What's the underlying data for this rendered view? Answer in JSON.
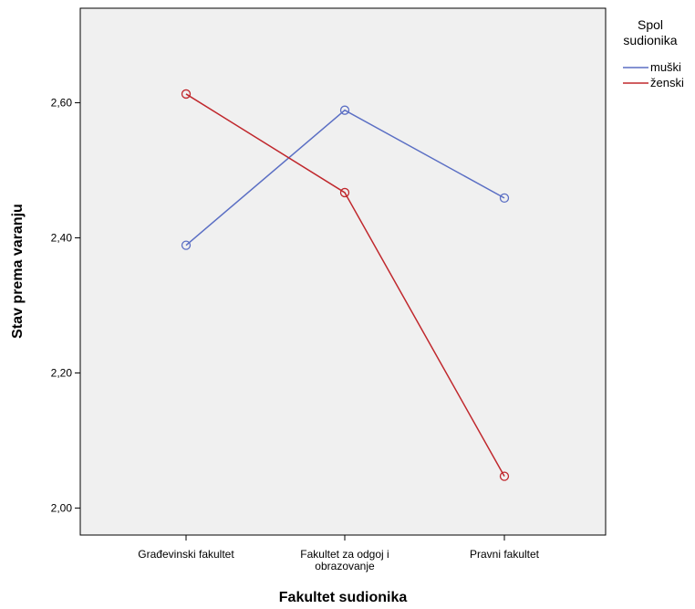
{
  "chart_data": {
    "type": "line",
    "title": "",
    "xlabel": "Fakultet sudionika",
    "ylabel": "Stav prema varanju",
    "categories": [
      [
        "Građevinski fakultet"
      ],
      [
        "Fakultet za odgoj i",
        "obrazovanje"
      ],
      [
        "Pravni fakultet"
      ]
    ],
    "ylim": [
      1.96,
      2.74
    ],
    "yticks": [
      2.0,
      2.2,
      2.4,
      2.6
    ],
    "ytick_labels": [
      "2,00",
      "2,20",
      "2,40",
      "2,60"
    ],
    "grid": false,
    "legend": {
      "title": [
        "Spol",
        "sudionika"
      ],
      "placement": "outside-right-top"
    },
    "series": [
      {
        "name": "muški",
        "color": "#5b6fc4",
        "marker": "open-circle",
        "values": [
          2.389,
          2.589,
          2.459
        ]
      },
      {
        "name": "ženski",
        "color": "#c0282d",
        "marker": "open-circle",
        "values": [
          2.613,
          2.467,
          2.047
        ]
      }
    ],
    "plot_background": "#f0f0f0"
  }
}
